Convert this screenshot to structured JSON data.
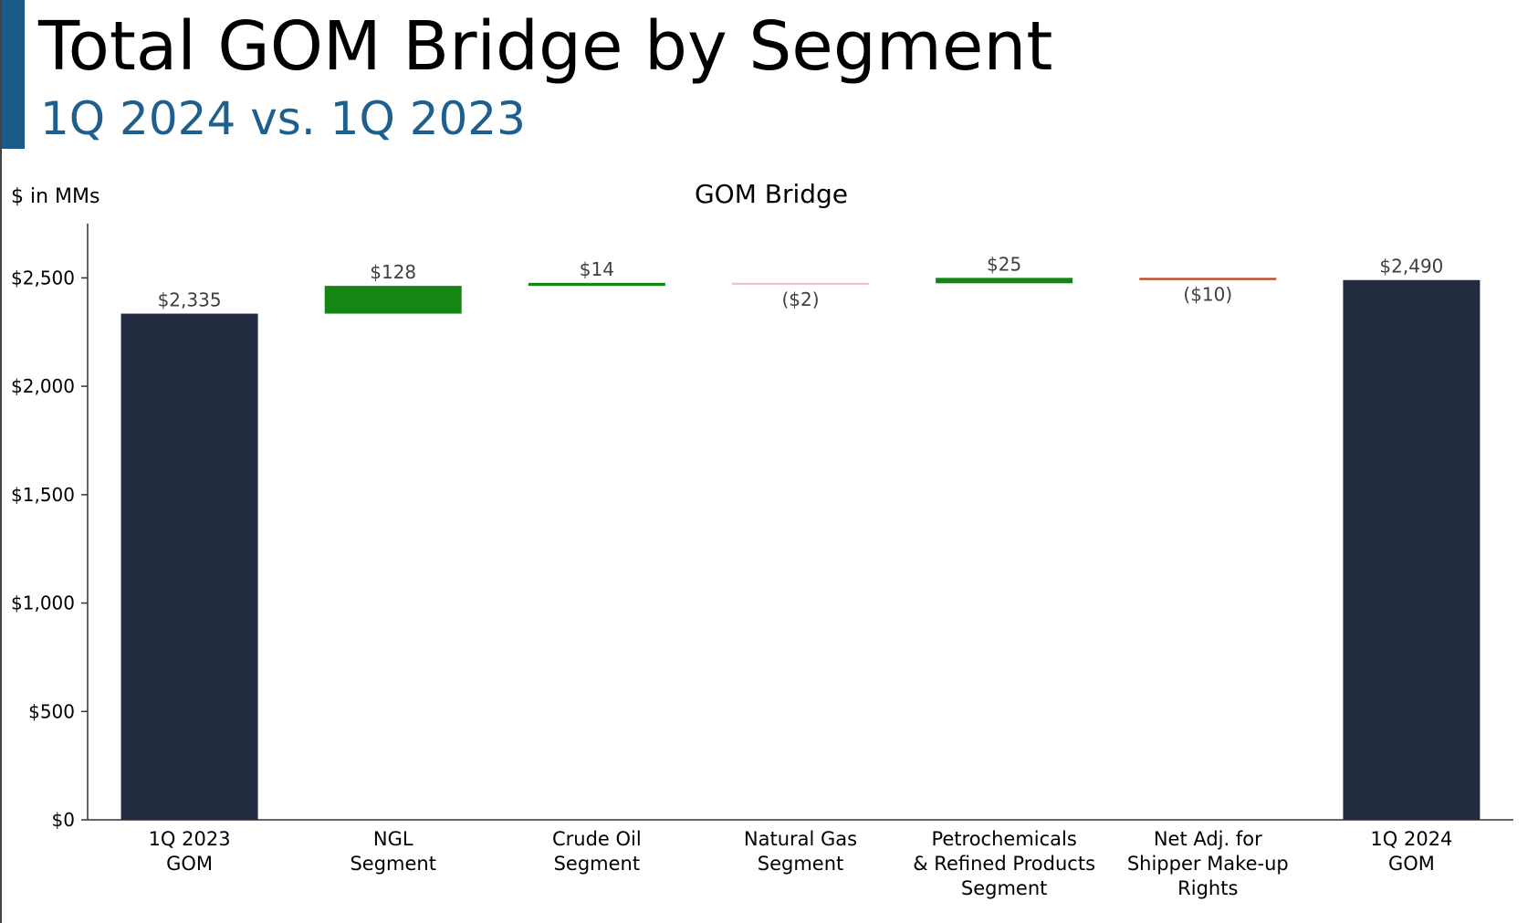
{
  "slide": {
    "title": "Total GOM Bridge by Segment",
    "subtitle": "1Q 2024 vs. 1Q 2023",
    "accent_color": "#1c5a8a",
    "subtitle_color": "#1f5f8e"
  },
  "chart_data": {
    "type": "bar",
    "subtype": "waterfall",
    "title": "GOM Bridge",
    "units_label": "$ in MMs",
    "ylim": [
      0,
      2750
    ],
    "yticks": [
      0,
      500,
      1000,
      1500,
      2000,
      2500
    ],
    "ytick_labels": [
      "$0",
      "$500",
      "$1,000",
      "$1,500",
      "$2,000",
      "$2,500"
    ],
    "grid": false,
    "categories": [
      [
        "1Q 2023",
        "GOM"
      ],
      [
        "NGL",
        "Segment"
      ],
      [
        "Crude Oil",
        "Segment"
      ],
      [
        "Natural Gas",
        "Segment"
      ],
      [
        "Petrochemicals",
        "& Refined Products",
        "Segment"
      ],
      [
        "Net Adj. for",
        "Shipper Make-up",
        "Rights"
      ],
      [
        "1Q 2024",
        "GOM"
      ]
    ],
    "bars": [
      {
        "kind": "total",
        "value": 2335,
        "label": "$2,335"
      },
      {
        "kind": "change",
        "value": 128,
        "label": "$128"
      },
      {
        "kind": "change",
        "value": 14,
        "label": "$14"
      },
      {
        "kind": "change",
        "value": -2,
        "label": "($2)"
      },
      {
        "kind": "change",
        "value": 25,
        "label": "$25"
      },
      {
        "kind": "change",
        "value": -10,
        "label": "($10)"
      },
      {
        "kind": "total",
        "value": 2490,
        "label": "$2,490"
      }
    ],
    "colors": {
      "total": "#222b40",
      "increase": "#138613",
      "decrease_small": "#f2b9c0",
      "decrease": "#c4471b",
      "axis": "#333333",
      "label": "#404040"
    }
  }
}
